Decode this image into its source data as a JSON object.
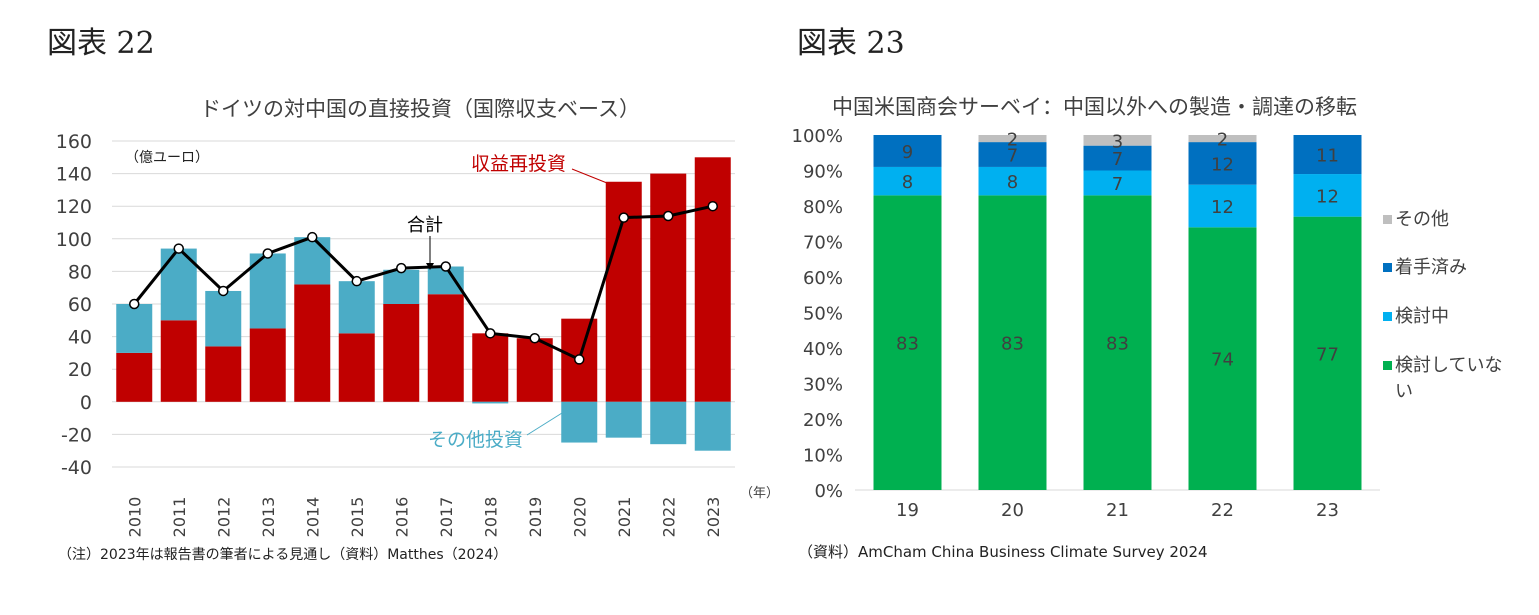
{
  "fig22": {
    "label": "図表 22",
    "note": "（注）2023年は報告書の筆者による見通し（資料）Matthes（2024）",
    "chart_data": {
      "type": "bar",
      "title": "ドイツの対中国の直接投資（国際収支ベース）",
      "unit_label": "（億ユーロ）",
      "x_unit": "（年）",
      "categories": [
        "2010",
        "2011",
        "2012",
        "2013",
        "2014",
        "2015",
        "2016",
        "2017",
        "2018",
        "2019",
        "2020",
        "2021",
        "2022",
        "2023"
      ],
      "ylim": [
        -40,
        160
      ],
      "yticks": [
        -40,
        -20,
        0,
        20,
        40,
        60,
        80,
        100,
        120,
        140,
        160
      ],
      "series": [
        {
          "name": "収益再投資",
          "color": "#c00000",
          "values": [
            30,
            50,
            34,
            45,
            72,
            42,
            60,
            66,
            42,
            39,
            51,
            135,
            140,
            150
          ]
        },
        {
          "name": "その他投資",
          "color": "#4bacc6",
          "values": [
            30,
            44,
            34,
            46,
            29,
            32,
            21,
            17,
            -1,
            0,
            -25,
            -22,
            -26,
            -30
          ]
        },
        {
          "name": "合計",
          "type": "line",
          "color": "#000000",
          "values": [
            60,
            94,
            68,
            91,
            101,
            74,
            82,
            83,
            42,
            39,
            26,
            113,
            114,
            120
          ]
        }
      ],
      "annotations": [
        "収益再投資",
        "合計",
        "その他投資"
      ],
      "grid": true
    }
  },
  "fig23": {
    "label": "図表 23",
    "note": "（資料）AmCham China Business Climate Survey 2024",
    "chart_data": {
      "type": "bar",
      "stacked": true,
      "title": "中国米国商会サーベイ：中国以外への製造・調達の移転",
      "categories": [
        "19",
        "20",
        "21",
        "22",
        "23"
      ],
      "ylim": [
        0,
        100
      ],
      "yticks": [
        "0%",
        "10%",
        "20%",
        "30%",
        "40%",
        "50%",
        "60%",
        "70%",
        "80%",
        "90%",
        "100%"
      ],
      "series": [
        {
          "name": "検討していない",
          "color": "#00b050",
          "values": [
            83,
            83,
            83,
            74,
            77
          ]
        },
        {
          "name": "検討中",
          "color": "#00b0f0",
          "values": [
            8,
            8,
            7,
            12,
            12
          ]
        },
        {
          "name": "着手済み",
          "color": "#0070c0",
          "values": [
            9,
            7,
            7,
            12,
            11
          ]
        },
        {
          "name": "その他",
          "color": "#bfbfbf",
          "values": [
            0,
            2,
            3,
            2,
            0
          ]
        }
      ],
      "legend_position": "right",
      "grid": false
    }
  }
}
